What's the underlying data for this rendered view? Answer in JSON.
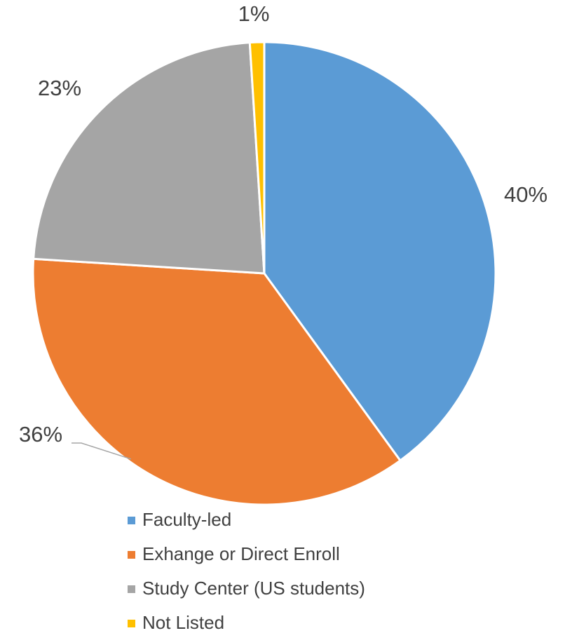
{
  "chart_data": {
    "type": "pie",
    "categories": [
      "Faculty-led",
      "Exhange or Direct Enroll",
      "Study Center (US students)",
      "Not Listed"
    ],
    "values": [
      40,
      36,
      23,
      1
    ],
    "value_labels": [
      "40%",
      "36%",
      "23%",
      "1%"
    ],
    "colors": [
      "#5b9bd5",
      "#ed7d31",
      "#a5a5a5",
      "#ffc000"
    ],
    "legend": "bottom"
  }
}
